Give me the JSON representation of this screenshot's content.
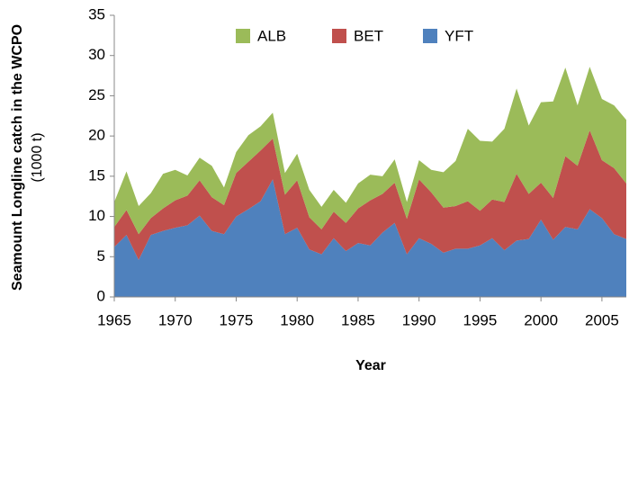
{
  "chart_data": {
    "type": "stacked_area",
    "y_label": "Seamount Longline catch  in the WCPO",
    "y_label_units": "(1000 t)",
    "x_label": "Year",
    "x": [
      1965,
      1966,
      1967,
      1968,
      1969,
      1970,
      1971,
      1972,
      1973,
      1974,
      1975,
      1976,
      1977,
      1978,
      1979,
      1980,
      1981,
      1982,
      1983,
      1984,
      1985,
      1986,
      1987,
      1988,
      1989,
      1990,
      1991,
      1992,
      1993,
      1994,
      1995,
      1996,
      1997,
      1998,
      1999,
      2000,
      2001,
      2002,
      2003,
      2004,
      2005,
      2006,
      2007
    ],
    "series": [
      {
        "name": "ALB",
        "color": "#9bbb59",
        "values": [
          3.1,
          4.8,
          3.5,
          3.1,
          4.3,
          3.8,
          2.5,
          2.8,
          3.9,
          2.2,
          2.6,
          3.3,
          3.0,
          3.2,
          2.7,
          3.3,
          3.4,
          2.8,
          2.7,
          2.5,
          3.1,
          3.2,
          2.2,
          2.9,
          2.1,
          2.4,
          2.8,
          4.4,
          5.6,
          9.0,
          8.7,
          7.2,
          9.1,
          10.6,
          8.5,
          10.0,
          12.0,
          11.0,
          7.5,
          7.9,
          7.6,
          7.8,
          7.9
        ]
      },
      {
        "name": "BET",
        "color": "#c0504d",
        "values": [
          2.5,
          3.1,
          3.2,
          2.1,
          2.8,
          3.4,
          3.7,
          4.4,
          4.2,
          3.6,
          5.4,
          5.9,
          6.3,
          5.1,
          4.9,
          5.9,
          4.0,
          3.1,
          3.3,
          3.5,
          4.3,
          5.6,
          4.8,
          5.0,
          4.4,
          7.3,
          6.4,
          5.6,
          5.3,
          5.9,
          4.3,
          4.8,
          6.0,
          8.3,
          5.6,
          4.6,
          5.2,
          8.8,
          7.9,
          9.8,
          7.2,
          8.2,
          6.9
        ]
      },
      {
        "name": "YFT",
        "color": "#4f81bd",
        "values": [
          6.2,
          7.7,
          4.6,
          7.7,
          8.2,
          8.6,
          8.9,
          10.1,
          8.2,
          7.8,
          10.0,
          10.9,
          11.9,
          14.6,
          7.8,
          8.6,
          5.9,
          5.3,
          7.3,
          5.7,
          6.7,
          6.4,
          8.0,
          9.2,
          5.3,
          7.3,
          6.6,
          5.5,
          6.0,
          6.0,
          6.4,
          7.3,
          5.8,
          7.0,
          7.2,
          9.6,
          7.1,
          8.7,
          8.4,
          10.9,
          9.8,
          7.8,
          7.2
        ]
      }
    ],
    "xlim": [
      1965,
      2007
    ],
    "xticks": [
      1965,
      1970,
      1975,
      1980,
      1985,
      1990,
      1995,
      2000,
      2005
    ],
    "ylim": [
      0,
      35
    ],
    "yticks": [
      0,
      5,
      10,
      15,
      20,
      25,
      30,
      35
    ],
    "legend": "top"
  }
}
